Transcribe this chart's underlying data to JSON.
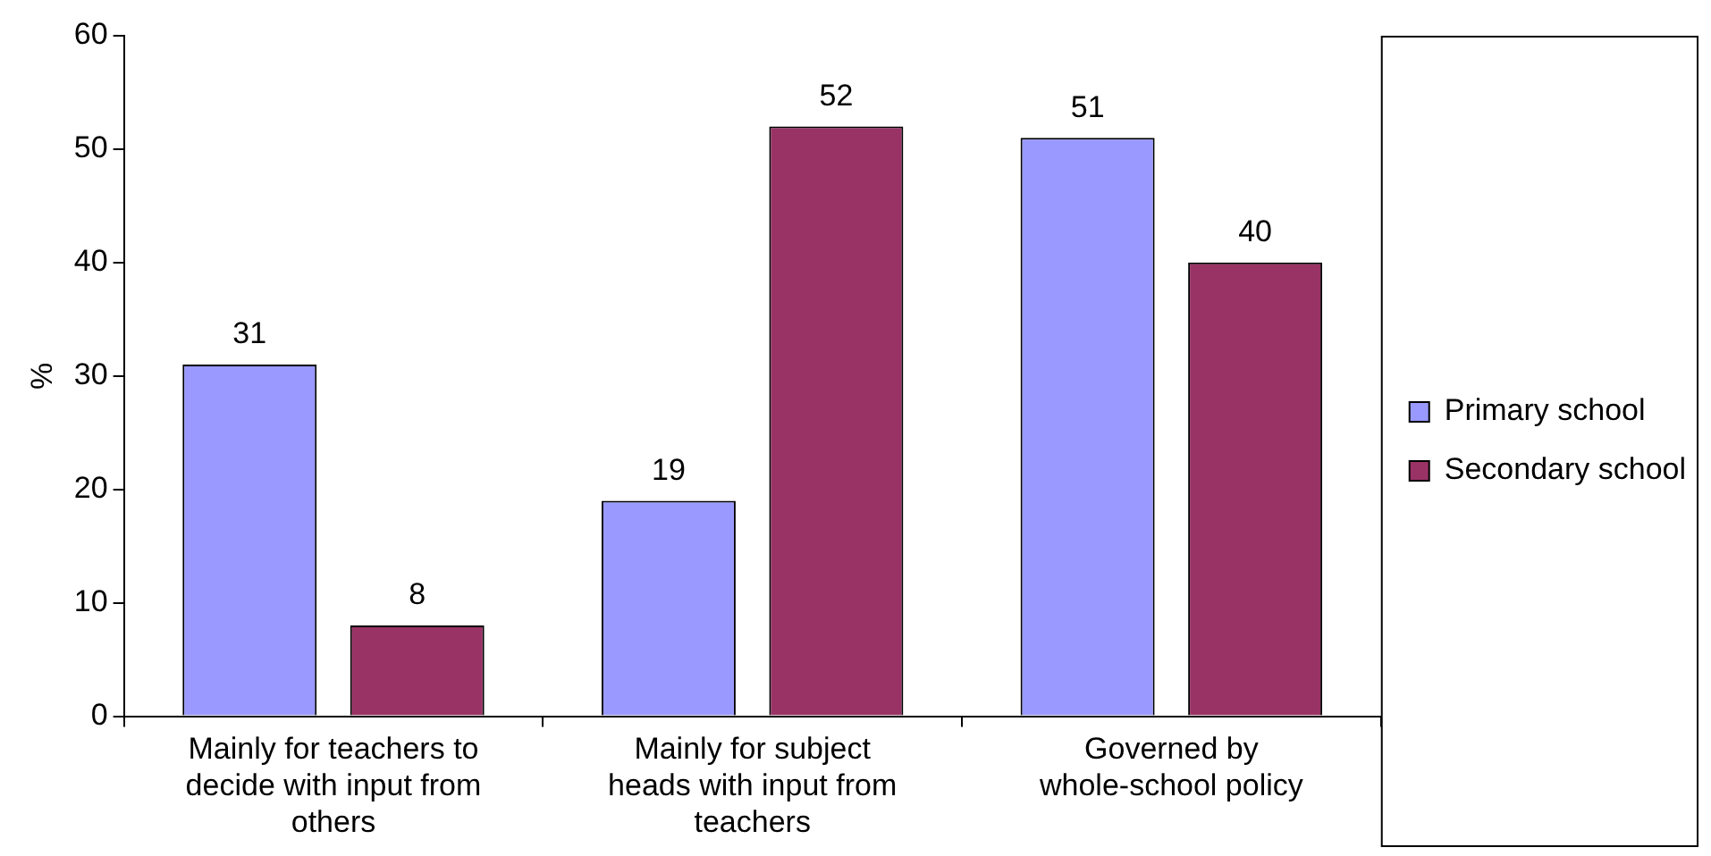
{
  "chart_data": {
    "type": "bar",
    "ylabel": "%",
    "categories": [
      "Mainly for teachers to decide with input from others",
      "Mainly for subject heads with input from teachers",
      "Governed by whole-school policy"
    ],
    "series": [
      {
        "name": "Primary school",
        "color": "#9999ff",
        "values": [
          31,
          19,
          51
        ]
      },
      {
        "name": "Secondary school",
        "color": "#993366",
        "values": [
          8,
          52,
          40
        ]
      }
    ],
    "ylim": [
      0,
      60
    ],
    "yticks": [
      0,
      10,
      20,
      30,
      40,
      50,
      60
    ],
    "grid": false,
    "legend": "right",
    "data_labels": true
  }
}
